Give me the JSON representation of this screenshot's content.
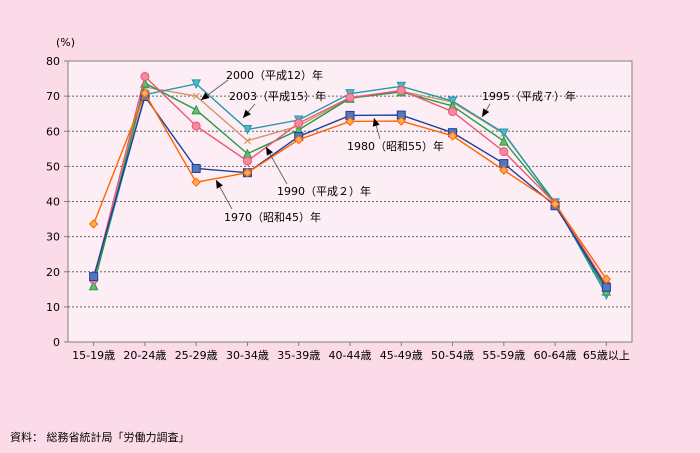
{
  "chart_data": {
    "type": "line",
    "title": "",
    "ylabel": "(%)",
    "xlabel": "",
    "ylim": [
      0,
      80
    ],
    "yticks": [
      0,
      10,
      20,
      30,
      40,
      50,
      60,
      70,
      80
    ],
    "grid": true,
    "categories": [
      "15-19歳",
      "20-24歳",
      "25-29歳",
      "30-34歳",
      "35-39歳",
      "40-44歳",
      "45-49歳",
      "50-54歳",
      "55-59歳",
      "60-64歳",
      "65歳以上"
    ],
    "series": [
      {
        "name": "1970（昭和45）年",
        "color": "#ff6600",
        "marker": "diamond",
        "values": [
          33.6,
          70.8,
          45.5,
          48.2,
          57.6,
          62.8,
          62.9,
          58.7,
          48.9,
          39.3,
          17.9
        ]
      },
      {
        "name": "1980（昭和55）年",
        "color": "#1f3f99",
        "marker": "square",
        "values": [
          18.6,
          69.9,
          49.4,
          48.2,
          58.5,
          64.5,
          64.6,
          59.6,
          50.8,
          38.8,
          15.6
        ]
      },
      {
        "name": "1990（平成２）年",
        "color": "#ee5577",
        "marker": "circle",
        "values": [
          17.8,
          75.6,
          61.5,
          51.5,
          62.3,
          69.6,
          71.6,
          65.6,
          54.2,
          39.5,
          16.2
        ]
      },
      {
        "name": "1995（平成７）年",
        "color": "#cc9966",
        "marker": "x",
        "values": [
          16.5,
          72.6,
          70.0,
          57.3,
          61.5,
          69.5,
          71.4,
          68.3,
          59.3,
          39.7,
          15.0
        ]
      },
      {
        "name": "2000（平成12）年",
        "color": "#2299aa",
        "marker": "triangle-down",
        "values": [
          16.8,
          70.4,
          73.5,
          60.5,
          63.2,
          70.7,
          72.8,
          68.6,
          59.5,
          39.6,
          13.4
        ]
      },
      {
        "name": "2003（平成15）年",
        "color": "#229944",
        "marker": "triangle-up",
        "values": [
          16.0,
          73.7,
          66.1,
          53.6,
          60.4,
          69.4,
          71.2,
          67.2,
          57.2,
          39.4,
          14.5
        ]
      }
    ],
    "annotations": [
      {
        "series": 4,
        "text": "2000（平成12）年"
      },
      {
        "series": 5,
        "text": "2003（平成15）年"
      },
      {
        "series": 3,
        "text": "1995（平成７）年"
      },
      {
        "series": 1,
        "text": "1980（昭和55）年"
      },
      {
        "series": 2,
        "text": "1990（平成２）年"
      },
      {
        "series": 0,
        "text": "1970（昭和45）年"
      }
    ]
  },
  "source": "資料： 総務省統計局「労働力調査」"
}
